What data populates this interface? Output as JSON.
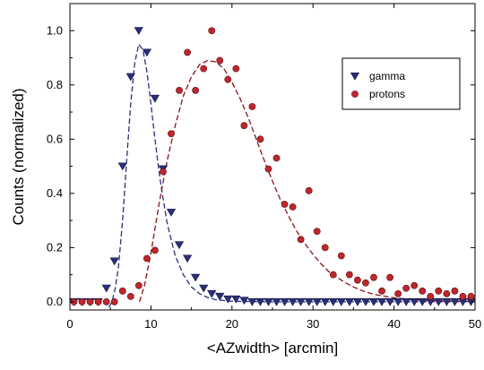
{
  "chart_data": {
    "type": "scatter",
    "xlabel": "<AZwidth>  [arcmin]",
    "ylabel": "Counts (normalized)",
    "xlim": [
      0,
      50
    ],
    "ylim": [
      -0.03,
      1.1
    ],
    "x_ticks": [
      0,
      10,
      20,
      30,
      40,
      50
    ],
    "y_ticks": [
      0.0,
      0.2,
      0.4,
      0.6,
      0.8,
      1.0
    ],
    "y_tick_labels": [
      "0.0",
      "0.2",
      "0.4",
      "0.6",
      "0.8",
      "1.0"
    ],
    "grid": false,
    "legend_position": "top-right",
    "series": [
      {
        "name": "gamma",
        "marker": "triangle-down",
        "color": "#2b2f7a",
        "points": [
          [
            0.5,
            0.0
          ],
          [
            1.5,
            0.0
          ],
          [
            2.5,
            0.0
          ],
          [
            3.5,
            0.0
          ],
          [
            4.5,
            0.05
          ],
          [
            5.5,
            0.15
          ],
          [
            6.5,
            0.5
          ],
          [
            7.5,
            0.83
          ],
          [
            8.5,
            1.0
          ],
          [
            9.5,
            0.92
          ],
          [
            10.5,
            0.75
          ],
          [
            11.5,
            0.49
          ],
          [
            12.5,
            0.33
          ],
          [
            13.5,
            0.21
          ],
          [
            14.5,
            0.16
          ],
          [
            15.5,
            0.09
          ],
          [
            16.5,
            0.05
          ],
          [
            17.5,
            0.03
          ],
          [
            18.5,
            0.02
          ],
          [
            19.5,
            0.01
          ],
          [
            20.5,
            0.01
          ],
          [
            21.5,
            0.005
          ],
          [
            22.5,
            0.0
          ],
          [
            23.5,
            0.0
          ],
          [
            24.5,
            0.0
          ],
          [
            25.5,
            0.0
          ],
          [
            26.5,
            0.0
          ],
          [
            27.5,
            0.0
          ],
          [
            28.5,
            0.0
          ],
          [
            29.5,
            0.0
          ],
          [
            30.5,
            0.0
          ],
          [
            31.5,
            0.0
          ],
          [
            32.5,
            0.0
          ],
          [
            33.5,
            0.0
          ],
          [
            34.5,
            0.0
          ],
          [
            35.5,
            0.0
          ],
          [
            36.5,
            0.0
          ],
          [
            37.5,
            0.0
          ],
          [
            38.5,
            0.0
          ],
          [
            39.5,
            0.0
          ],
          [
            40.5,
            0.0
          ],
          [
            41.5,
            0.0
          ],
          [
            42.5,
            0.0
          ],
          [
            43.5,
            0.0
          ],
          [
            44.5,
            0.0
          ],
          [
            45.5,
            0.0
          ],
          [
            46.5,
            0.0
          ],
          [
            47.5,
            0.0
          ],
          [
            48.5,
            0.0
          ],
          [
            49.5,
            0.0
          ]
        ],
        "fit": {
          "color": "#2b2f7a",
          "points": [
            [
              4.8,
              -0.02
            ],
            [
              5.2,
              0.0
            ],
            [
              5.6,
              0.05
            ],
            [
              6.0,
              0.13
            ],
            [
              6.5,
              0.3
            ],
            [
              7.0,
              0.52
            ],
            [
              7.5,
              0.73
            ],
            [
              8.0,
              0.88
            ],
            [
              8.5,
              0.95
            ],
            [
              9.0,
              0.93
            ],
            [
              9.5,
              0.85
            ],
            [
              10.0,
              0.73
            ],
            [
              10.5,
              0.6
            ],
            [
              11.0,
              0.48
            ],
            [
              11.5,
              0.38
            ],
            [
              12.0,
              0.29
            ],
            [
              13.0,
              0.17
            ],
            [
              14.0,
              0.1
            ],
            [
              15.0,
              0.055
            ],
            [
              16.0,
              0.03
            ],
            [
              17.0,
              0.016
            ],
            [
              18.0,
              0.008
            ],
            [
              20.0,
              0.002
            ],
            [
              25.0,
              0.0
            ],
            [
              30.0,
              0.0
            ],
            [
              35.0,
              0.0
            ],
            [
              40.0,
              0.0
            ],
            [
              45.0,
              0.0
            ],
            [
              50.0,
              0.0
            ]
          ]
        }
      },
      {
        "name": "protons",
        "marker": "circle",
        "color": "#c0262d",
        "points": [
          [
            0.5,
            0.0
          ],
          [
            1.5,
            0.0
          ],
          [
            2.5,
            0.0
          ],
          [
            3.5,
            0.0
          ],
          [
            4.5,
            0.0
          ],
          [
            5.5,
            0.0
          ],
          [
            6.5,
            0.04
          ],
          [
            7.5,
            0.02
          ],
          [
            8.5,
            0.06
          ],
          [
            9.5,
            0.16
          ],
          [
            10.5,
            0.19
          ],
          [
            11.5,
            0.48
          ],
          [
            12.5,
            0.62
          ],
          [
            13.5,
            0.78
          ],
          [
            14.5,
            0.92
          ],
          [
            15.5,
            0.78
          ],
          [
            16.5,
            0.86
          ],
          [
            17.5,
            1.0
          ],
          [
            18.5,
            0.89
          ],
          [
            19.5,
            0.82
          ],
          [
            20.5,
            0.86
          ],
          [
            21.5,
            0.65
          ],
          [
            22.5,
            0.72
          ],
          [
            23.5,
            0.6
          ],
          [
            24.5,
            0.49
          ],
          [
            25.5,
            0.53
          ],
          [
            26.5,
            0.36
          ],
          [
            27.5,
            0.35
          ],
          [
            28.5,
            0.23
          ],
          [
            29.5,
            0.41
          ],
          [
            30.5,
            0.26
          ],
          [
            31.5,
            0.2
          ],
          [
            32.5,
            0.1
          ],
          [
            33.5,
            0.17
          ],
          [
            34.5,
            0.1
          ],
          [
            35.5,
            0.08
          ],
          [
            36.5,
            0.07
          ],
          [
            37.5,
            0.09
          ],
          [
            38.5,
            0.04
          ],
          [
            39.5,
            0.09
          ],
          [
            40.5,
            0.03
          ],
          [
            41.5,
            0.05
          ],
          [
            42.5,
            0.06
          ],
          [
            43.5,
            0.04
          ],
          [
            44.5,
            0.02
          ],
          [
            45.5,
            0.04
          ],
          [
            46.5,
            0.03
          ],
          [
            47.5,
            0.04
          ],
          [
            48.5,
            0.02
          ],
          [
            49.5,
            0.02
          ]
        ],
        "fit": {
          "color": "#8b1218",
          "points": [
            [
              8.6,
              0.0
            ],
            [
              9.2,
              0.06
            ],
            [
              10.0,
              0.18
            ],
            [
              11.0,
              0.36
            ],
            [
              12.0,
              0.52
            ],
            [
              13.0,
              0.65
            ],
            [
              14.0,
              0.76
            ],
            [
              15.0,
              0.83
            ],
            [
              16.0,
              0.875
            ],
            [
              17.0,
              0.89
            ],
            [
              18.0,
              0.885
            ],
            [
              19.0,
              0.86
            ],
            [
              20.0,
              0.81
            ],
            [
              21.0,
              0.75
            ],
            [
              22.0,
              0.68
            ],
            [
              23.0,
              0.6
            ],
            [
              24.0,
              0.52
            ],
            [
              25.0,
              0.445
            ],
            [
              26.0,
              0.375
            ],
            [
              27.0,
              0.315
            ],
            [
              28.0,
              0.26
            ],
            [
              29.0,
              0.215
            ],
            [
              30.0,
              0.175
            ],
            [
              31.0,
              0.14
            ],
            [
              32.0,
              0.11
            ],
            [
              33.0,
              0.09
            ],
            [
              34.0,
              0.07
            ],
            [
              35.0,
              0.055
            ],
            [
              36.0,
              0.042
            ],
            [
              37.0,
              0.032
            ],
            [
              38.0,
              0.025
            ],
            [
              40.0,
              0.015
            ],
            [
              42.0,
              0.009
            ],
            [
              44.0,
              0.005
            ],
            [
              46.0,
              0.003
            ],
            [
              48.0,
              0.002
            ],
            [
              50.0,
              0.001
            ]
          ]
        }
      }
    ]
  }
}
